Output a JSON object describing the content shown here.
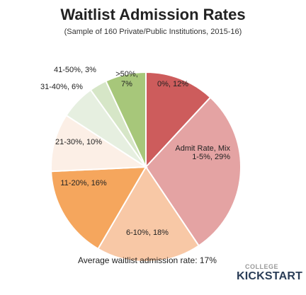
{
  "chart_data": {
    "type": "pie",
    "title": "Waitlist Admission Rates",
    "subtitle": "(Sample of 160 Private/Public Institutions, 2015-16)",
    "legend_title": "Admit Rate, Mix",
    "slices": [
      {
        "label": "0%, 12%",
        "range": "0%",
        "value": 12,
        "color": "#cd5c5c"
      },
      {
        "label": "1-5%, 29%",
        "range": "1-5%",
        "value": 29,
        "color": "#e4a3a3"
      },
      {
        "label": "6-10%, 18%",
        "range": "6-10%",
        "value": 18,
        "color": "#f8c8a6"
      },
      {
        "label": "11-20%, 16%",
        "range": "11-20%",
        "value": 16,
        "color": "#f5a65d"
      },
      {
        "label": "21-30%, 10%",
        "range": "21-30%",
        "value": 10,
        "color": "#fcefe6"
      },
      {
        "label": "31-40%, 6%",
        "range": "31-40%",
        "value": 6,
        "color": "#e6efe0"
      },
      {
        "label": "41-50%, 3%",
        "range": "41-50%",
        "value": 3,
        "color": "#d6e6c7"
      },
      {
        "label": ">50%, 7%",
        "range": ">50%",
        "value": 7,
        "color": "#a7c77a"
      }
    ],
    "annotation": "Average waitlist admission rate: 17%"
  },
  "logo": {
    "top_text": "COLLEGE",
    "main_text": "KICKSTART"
  }
}
